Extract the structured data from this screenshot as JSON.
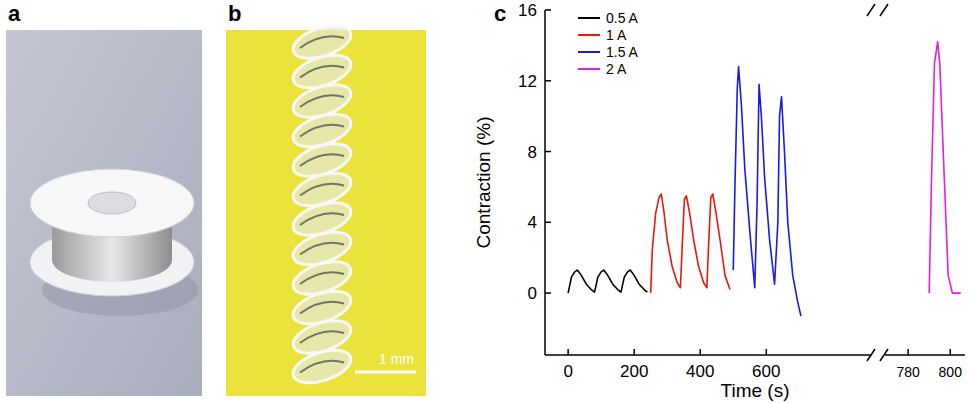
{
  "panel_labels": [
    "a",
    "b",
    "c"
  ],
  "scale_bar": {
    "label": "1 mm"
  },
  "chart_data": {
    "type": "line",
    "x_label": "Time (s)",
    "y_label": "Contraction (%)",
    "xlim": [
      [
        -70,
        920
      ],
      [
        769,
        807
      ]
    ],
    "xticks": [
      [
        0,
        200,
        400,
        600
      ],
      [
        780,
        800
      ]
    ],
    "ylim": [
      -3.5,
      16
    ],
    "yticks": [
      0,
      4,
      8,
      12,
      16
    ],
    "legend": "upper left",
    "series": [
      {
        "name": "0.5 A",
        "color": "#000000",
        "x": [
          0,
          10,
          20,
          28,
          40,
          55,
          70,
          80,
          90,
          100,
          108,
          120,
          135,
          150,
          160,
          170,
          180,
          188,
          200,
          215,
          230,
          240
        ],
        "values": [
          0,
          0.9,
          1.2,
          1.3,
          1.0,
          0.5,
          0.2,
          0.05,
          0.9,
          1.2,
          1.3,
          1.0,
          0.5,
          0.2,
          0.05,
          0.9,
          1.2,
          1.3,
          1.0,
          0.5,
          0.2,
          0.05
        ]
      },
      {
        "name": "1 A",
        "color": "#e8180c",
        "x": [
          250,
          255,
          265,
          275,
          282,
          290,
          300,
          315,
          330,
          340,
          345,
          352,
          358,
          368,
          380,
          395,
          410,
          420,
          425,
          432,
          438,
          448,
          460,
          475,
          490
        ],
        "values": [
          0,
          2.5,
          4.5,
          5.4,
          5.6,
          4.6,
          3.0,
          1.5,
          0.6,
          0.3,
          2.5,
          5.3,
          5.5,
          4.5,
          3.0,
          1.5,
          0.6,
          0.3,
          2.6,
          5.4,
          5.6,
          4.5,
          3.0,
          1.0,
          0.2
        ]
      },
      {
        "name": "1.5 A",
        "color": "#1a1ae6",
        "x": [
          500,
          505,
          512,
          516,
          525,
          535,
          550,
          565,
          572,
          578,
          585,
          595,
          610,
          625,
          635,
          640,
          646,
          655,
          665,
          680,
          695,
          705
        ],
        "values": [
          1.3,
          6,
          11.5,
          12.8,
          10.5,
          7,
          3.5,
          0.3,
          5,
          11.8,
          10,
          6.5,
          3,
          0.5,
          4,
          10,
          11.1,
          8,
          4,
          1,
          -0.5,
          -1.3
        ]
      },
      {
        "name": "2 A",
        "color": "#e020e0",
        "x": [
          790,
          791,
          792.5,
          794,
          795,
          797,
          799,
          801,
          805
        ],
        "values": [
          0,
          6,
          13,
          14.2,
          13,
          7,
          1,
          0,
          0
        ]
      }
    ]
  }
}
